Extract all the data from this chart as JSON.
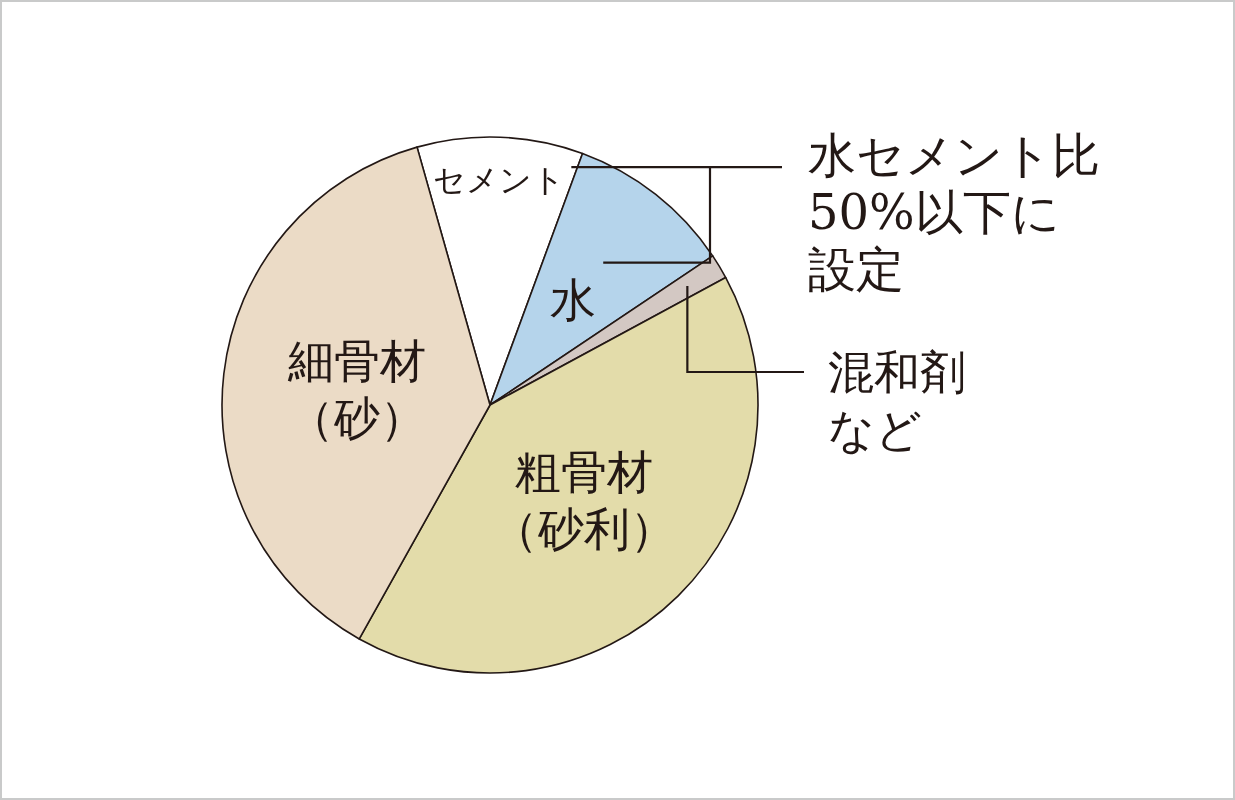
{
  "chart_data": {
    "type": "pie",
    "categories": [
      "セメント",
      "水",
      "混和剤など",
      "粗骨材（砂利）",
      "細骨材（砂）"
    ],
    "values": [
      10,
      10,
      1.5,
      41,
      37.5
    ],
    "colors": [
      "#ffffff",
      "#b5d4eb",
      "#d3c8c3",
      "#e3dcaa",
      "#ebdbc6"
    ],
    "annotations": [
      "水セメント比50%以下に設定"
    ]
  }
}
